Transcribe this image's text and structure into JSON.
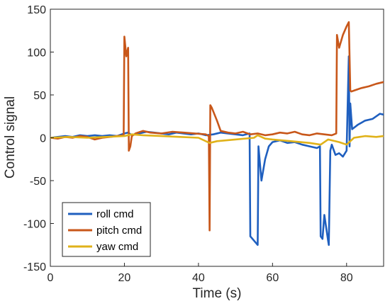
{
  "chart_data": {
    "type": "line",
    "title": "",
    "xlabel": "Time (s)",
    "ylabel": "Control signal",
    "xlim": [
      0,
      90
    ],
    "ylim": [
      -150,
      150
    ],
    "xticks": [
      0,
      20,
      40,
      60,
      80
    ],
    "yticks": [
      -150,
      -100,
      -50,
      0,
      50,
      100,
      150
    ],
    "grid": false,
    "legend_position": "bottom-left",
    "series": [
      {
        "name": "roll cmd",
        "color": "#1f5fbf",
        "x": [
          0,
          2,
          4,
          6,
          8,
          10,
          12,
          14,
          16,
          18,
          20,
          21,
          22,
          24,
          26,
          28,
          30,
          32,
          34,
          36,
          38,
          40,
          42,
          44,
          46,
          48,
          50,
          52,
          53.8,
          54,
          55,
          56,
          56.2,
          57,
          58,
          59,
          60,
          62,
          64,
          66,
          68,
          70,
          72,
          72.8,
          73,
          73.5,
          74,
          75,
          75.2,
          75.6,
          76,
          77,
          78,
          79,
          80,
          80.6,
          80.8,
          81,
          81.5,
          83,
          85,
          87,
          89,
          90
        ],
        "y": [
          0,
          1,
          2,
          1,
          3,
          2,
          3,
          2,
          3,
          2,
          5,
          6,
          3,
          5,
          7,
          6,
          5,
          4,
          6,
          5,
          4,
          5,
          3,
          4,
          6,
          5,
          4,
          3,
          5,
          -115,
          -120,
          -125,
          -10,
          -50,
          -25,
          -10,
          -5,
          -3,
          -6,
          -5,
          -8,
          -10,
          -12,
          -10,
          -115,
          -118,
          -90,
          -120,
          -125,
          -15,
          -8,
          -20,
          -18,
          -22,
          -15,
          95,
          -10,
          40,
          10,
          15,
          20,
          22,
          28,
          27
        ]
      },
      {
        "name": "pitch cmd",
        "color": "#c8571a",
        "x": [
          0,
          2,
          4,
          6,
          8,
          10,
          12,
          14,
          16,
          18,
          19.8,
          20,
          20.5,
          21,
          21.2,
          21.6,
          22,
          23,
          25,
          27,
          30,
          33,
          36,
          39,
          42,
          42.8,
          43,
          43.2,
          43.6,
          45,
          46,
          48,
          50,
          52,
          54,
          56,
          58,
          60,
          62,
          64,
          66,
          68,
          70,
          72,
          74,
          76,
          77.2,
          77.4,
          78,
          79,
          80,
          80.6,
          81,
          81.3,
          82,
          84,
          86,
          88,
          90
        ],
        "y": [
          0,
          -1,
          1,
          0,
          2,
          1,
          -2,
          0,
          1,
          2,
          3,
          118,
          95,
          105,
          -15,
          -10,
          2,
          5,
          8,
          6,
          5,
          7,
          6,
          5,
          4,
          2,
          -108,
          38,
          35,
          20,
          8,
          6,
          5,
          7,
          4,
          5,
          3,
          4,
          6,
          5,
          7,
          4,
          3,
          5,
          4,
          3,
          5,
          120,
          105,
          120,
          130,
          135,
          55,
          54,
          55,
          58,
          60,
          63,
          65
        ]
      },
      {
        "name": "yaw cmd",
        "color": "#e0b21a",
        "x": [
          0,
          5,
          10,
          15,
          20,
          22,
          25,
          30,
          35,
          40,
          43,
          45,
          50,
          55,
          56,
          58,
          60,
          65,
          70,
          73,
          75,
          78,
          80,
          82,
          85,
          88,
          90
        ],
        "y": [
          0,
          1,
          0,
          1,
          2,
          4,
          3,
          2,
          1,
          0,
          -6,
          -4,
          -2,
          0,
          3,
          -1,
          -2,
          -4,
          -6,
          -8,
          -2,
          -5,
          -8,
          0,
          2,
          1,
          2
        ]
      }
    ]
  }
}
